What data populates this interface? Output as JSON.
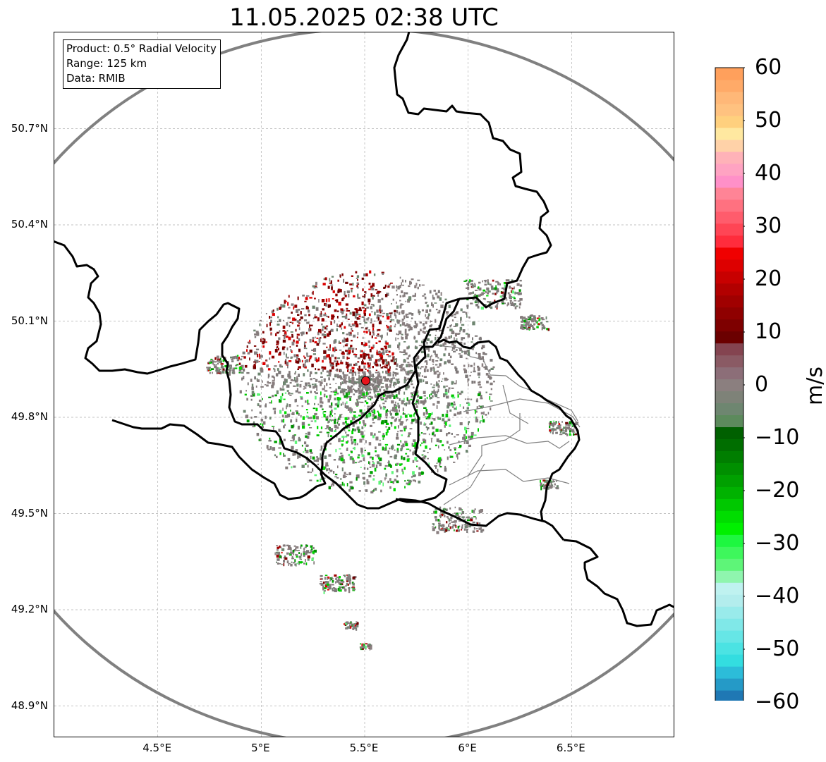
{
  "title": "11.05.2025 02:38 UTC",
  "info_box": {
    "product": "Product: 0.5° Radial Velocity",
    "range": "Range: 125 km",
    "data": "Data: RMIB"
  },
  "map": {
    "lon_range": [
      4.0,
      7.0
    ],
    "lat_range": [
      48.8,
      51.0
    ],
    "radar_site": {
      "lon": 5.505,
      "lat": 49.914
    },
    "range_km": 125,
    "gridlines": true,
    "x_ticks": [
      {
        "value": 4.5,
        "label": "4.5°E"
      },
      {
        "value": 5.0,
        "label": "5°E"
      },
      {
        "value": 5.5,
        "label": "5.5°E"
      },
      {
        "value": 6.0,
        "label": "6°E"
      },
      {
        "value": 6.5,
        "label": "6.5°E"
      }
    ],
    "y_ticks": [
      {
        "value": 50.7,
        "label": "50.7°N"
      },
      {
        "value": 50.4,
        "label": "50.4°N"
      },
      {
        "value": 50.1,
        "label": "50.1°N"
      },
      {
        "value": 49.8,
        "label": "49.8°N"
      },
      {
        "value": 49.5,
        "label": "49.5°N"
      },
      {
        "value": 49.2,
        "label": "49.2°N"
      },
      {
        "value": 48.9,
        "label": "48.9°N"
      }
    ],
    "colors": {
      "border": "#000000",
      "range_ring": "#808080",
      "grid": "#b0b0b0",
      "admin": "#808080",
      "site": "#e8141c"
    }
  },
  "colorbar": {
    "label": "m/s",
    "min": -60,
    "max": 60,
    "ticks": [
      "60",
      "50",
      "40",
      "30",
      "20",
      "10",
      "0",
      "−10",
      "−20",
      "−30",
      "−40",
      "−50",
      "−60"
    ],
    "colors": [
      "#1f78b4",
      "#259ac7",
      "#2cbcd9",
      "#33dde0",
      "#4be3e3",
      "#66e6e6",
      "#80e8e8",
      "#99ebeb",
      "#b3eded",
      "#bff2f0",
      "#8ff5ae",
      "#5ef578",
      "#3ef75c",
      "#1ef740",
      "#00f000",
      "#00dd00",
      "#00c800",
      "#00b200",
      "#00a000",
      "#008f00",
      "#007e00",
      "#006e00",
      "#006000",
      "#5c8a5c",
      "#6e8670",
      "#7e8278",
      "#8b7f7f",
      "#8c6e78",
      "#8a5a64",
      "#844450",
      "#6b0000",
      "#7e0000",
      "#8f0000",
      "#a00000",
      "#b20000",
      "#c80000",
      "#dd0000",
      "#f00000",
      "#ff2c3c",
      "#ff4555",
      "#ff5c6c",
      "#ff7180",
      "#ff8496",
      "#ff90c8",
      "#ffa3c2",
      "#ffb2b8",
      "#ffd2a8",
      "#ffe8a0",
      "#ffd07e",
      "#ffc280",
      "#ffb878",
      "#ffaa68",
      "#ffa05c"
    ]
  }
}
